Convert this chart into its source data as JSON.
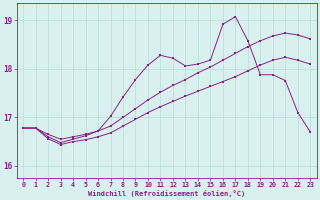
{
  "xlabel": "Windchill (Refroidissement éolien,°C)",
  "bg_color": "#d8f0ee",
  "line_color": "#8b2086",
  "grid_color": "#b8ddd8",
  "x_ticks": [
    0,
    1,
    2,
    3,
    4,
    5,
    6,
    7,
    8,
    9,
    10,
    11,
    12,
    13,
    14,
    15,
    16,
    17,
    18,
    19,
    20,
    21,
    22,
    23
  ],
  "ylim": [
    15.75,
    19.35
  ],
  "xlim": [
    -0.5,
    23.5
  ],
  "y_ticks": [
    16,
    17,
    18,
    19
  ],
  "main_x": [
    0,
    1,
    2,
    3,
    4,
    5,
    6,
    7,
    8,
    9,
    10,
    11,
    12,
    13,
    14,
    15,
    16,
    17,
    18,
    19,
    20,
    21,
    22,
    23
  ],
  "main_y": [
    16.78,
    16.78,
    16.6,
    16.48,
    16.55,
    16.62,
    16.72,
    17.02,
    17.42,
    17.78,
    18.08,
    18.28,
    18.22,
    18.06,
    18.1,
    18.18,
    18.92,
    19.08,
    18.58,
    17.88,
    17.88,
    17.76,
    17.1,
    16.7
  ],
  "upper_x": [
    0,
    1,
    2,
    3,
    4,
    5,
    6,
    7,
    8,
    9,
    10,
    11,
    12,
    13,
    14,
    15,
    16,
    17,
    18,
    19,
    20,
    21,
    22,
    23
  ],
  "upper_y": [
    16.78,
    16.78,
    16.65,
    16.55,
    16.6,
    16.65,
    16.72,
    16.82,
    17.0,
    17.18,
    17.36,
    17.52,
    17.66,
    17.78,
    17.92,
    18.04,
    18.18,
    18.32,
    18.46,
    18.58,
    18.68,
    18.74,
    18.7,
    18.62
  ],
  "lower_x": [
    0,
    1,
    2,
    3,
    4,
    5,
    6,
    7,
    8,
    9,
    10,
    11,
    12,
    13,
    14,
    15,
    16,
    17,
    18,
    19,
    20,
    21,
    22,
    23
  ],
  "lower_y": [
    16.78,
    16.78,
    16.56,
    16.44,
    16.5,
    16.54,
    16.6,
    16.68,
    16.82,
    16.96,
    17.1,
    17.22,
    17.33,
    17.44,
    17.54,
    17.64,
    17.74,
    17.84,
    17.96,
    18.08,
    18.18,
    18.24,
    18.18,
    18.1
  ]
}
